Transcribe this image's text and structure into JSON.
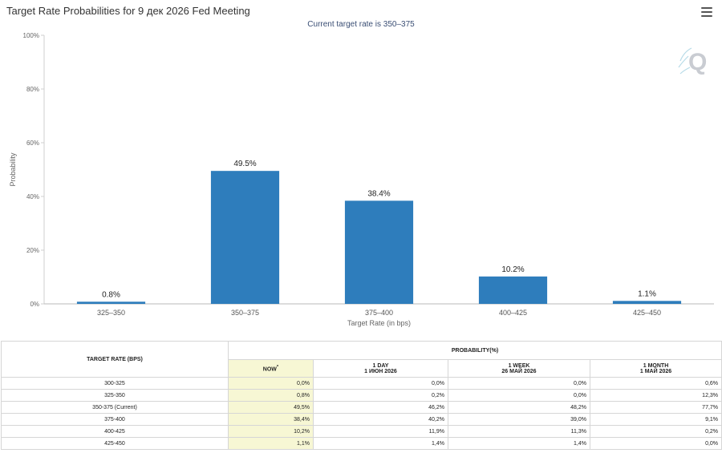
{
  "chart": {
    "title": "Target Rate Probabilities for 9 дек 2026 Fed Meeting",
    "subtitle": "Current target rate is 350–375"
  },
  "chart_data": {
    "type": "bar",
    "title": "Target Rate Probabilities for 9 дек 2026 Fed Meeting",
    "subtitle": "Current target rate is 350–375",
    "xlabel": "Target Rate (in bps)",
    "ylabel": "Probability",
    "categories": [
      "325–350",
      "350–375",
      "375–400",
      "400–425",
      "425–450"
    ],
    "values": [
      0.8,
      49.5,
      38.4,
      10.2,
      1.1
    ],
    "data_labels": [
      "0.8%",
      "49.5%",
      "38.4%",
      "10.2%",
      "1.1%"
    ],
    "ylim": [
      0,
      100
    ],
    "yticks": [
      0,
      20,
      40,
      60,
      80,
      100
    ],
    "ytick_labels": [
      "0%",
      "20%",
      "40%",
      "60%",
      "80%",
      "100%"
    ],
    "grid": false,
    "bar_color": "#2e7dbc"
  },
  "table": {
    "header_rate": "TARGET RATE (BPS)",
    "header_prob": "PROBABILITY(%)",
    "columns": [
      {
        "line1": "NOW",
        "line2": "",
        "marker": "*"
      },
      {
        "line1": "1 DAY",
        "line2": "1 ИЮН 2026",
        "marker": ""
      },
      {
        "line1": "1 WEEK",
        "line2": "26 МАЙ 2026",
        "marker": ""
      },
      {
        "line1": "1 MONTH",
        "line2": "1 МАЙ 2026",
        "marker": ""
      }
    ],
    "rows": [
      {
        "rate": "300-325",
        "values": [
          "0,0%",
          "0,0%",
          "0,0%",
          "0,6%"
        ]
      },
      {
        "rate": "325-350",
        "values": [
          "0,8%",
          "0,2%",
          "0,0%",
          "12,3%"
        ]
      },
      {
        "rate": "350-375 (Current)",
        "values": [
          "49,5%",
          "46,2%",
          "48,2%",
          "77,7%"
        ]
      },
      {
        "rate": "375-400",
        "values": [
          "38,4%",
          "40,2%",
          "39,0%",
          "9,1%"
        ]
      },
      {
        "rate": "400-425",
        "values": [
          "10,2%",
          "11,9%",
          "11,3%",
          "0,2%"
        ]
      },
      {
        "rate": "425-450",
        "values": [
          "1,1%",
          "1,4%",
          "1,4%",
          "0,0%"
        ]
      }
    ]
  },
  "icons": {
    "menu": "hamburger-menu-icon",
    "watermark": "q-logo-icon"
  }
}
